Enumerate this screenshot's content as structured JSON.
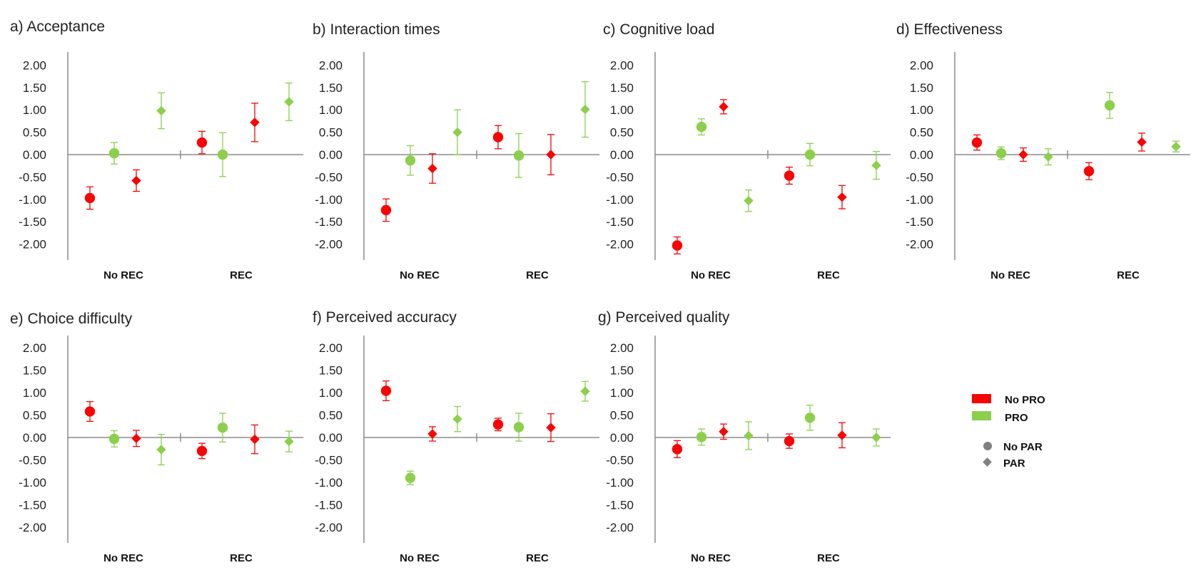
{
  "colors": {
    "no_pro": "#f80404",
    "pro": "#8ccf4c",
    "axis": "#8c8c8c",
    "legend_marker": "#808080"
  },
  "y_ticks": [
    "2.00",
    "1.50",
    "1.00",
    "0.50",
    "0.00",
    "-0.50",
    "-1.00",
    "-1.50",
    "-2.00"
  ],
  "legend": {
    "no_pro": "No PRO",
    "pro": "PRO",
    "no_par": "No PAR",
    "par": "PAR"
  },
  "chart_data": [
    {
      "type": "scatter",
      "title": "a) Acceptance",
      "groups": [
        "No REC",
        "REC"
      ],
      "ylim": [
        -2.3,
        2.3
      ],
      "points": [
        {
          "group": "No REC",
          "pro": false,
          "par": false,
          "value": -0.97,
          "err": 0.25
        },
        {
          "group": "No REC",
          "pro": true,
          "par": false,
          "value": 0.03,
          "err": 0.24
        },
        {
          "group": "No REC",
          "pro": false,
          "par": true,
          "value": -0.58,
          "err": 0.24
        },
        {
          "group": "No REC",
          "pro": true,
          "par": true,
          "value": 0.98,
          "err": 0.4
        },
        {
          "group": "REC",
          "pro": false,
          "par": false,
          "value": 0.27,
          "err": 0.25
        },
        {
          "group": "REC",
          "pro": true,
          "par": false,
          "value": 0.0,
          "err": 0.49
        },
        {
          "group": "REC",
          "pro": false,
          "par": true,
          "value": 0.72,
          "err": 0.43
        },
        {
          "group": "REC",
          "pro": true,
          "par": true,
          "value": 1.18,
          "err": 0.42
        }
      ]
    },
    {
      "type": "scatter",
      "title": "b) Interaction times",
      "groups": [
        "No REC",
        "REC"
      ],
      "ylim": [
        -2.3,
        2.3
      ],
      "points": [
        {
          "group": "No REC",
          "pro": false,
          "par": false,
          "value": -1.24,
          "err": 0.25
        },
        {
          "group": "No REC",
          "pro": true,
          "par": false,
          "value": -0.13,
          "err": 0.33
        },
        {
          "group": "No REC",
          "pro": false,
          "par": true,
          "value": -0.31,
          "err": 0.33
        },
        {
          "group": "No REC",
          "pro": true,
          "par": true,
          "value": 0.5,
          "err": 0.5
        },
        {
          "group": "REC",
          "pro": false,
          "par": false,
          "value": 0.39,
          "err": 0.26
        },
        {
          "group": "REC",
          "pro": true,
          "par": false,
          "value": -0.02,
          "err": 0.49
        },
        {
          "group": "REC",
          "pro": false,
          "par": true,
          "value": 0.0,
          "err": 0.45
        },
        {
          "group": "REC",
          "pro": true,
          "par": true,
          "value": 1.01,
          "err": 0.62
        }
      ]
    },
    {
      "type": "scatter",
      "title": "c) Cognitive load",
      "groups": [
        "No REC",
        "REC"
      ],
      "ylim": [
        -2.3,
        2.3
      ],
      "points": [
        {
          "group": "No REC",
          "pro": false,
          "par": false,
          "value": -2.03,
          "err": 0.19
        },
        {
          "group": "No REC",
          "pro": true,
          "par": false,
          "value": 0.62,
          "err": 0.18
        },
        {
          "group": "No REC",
          "pro": false,
          "par": true,
          "value": 1.07,
          "err": 0.16
        },
        {
          "group": "No REC",
          "pro": true,
          "par": true,
          "value": -1.03,
          "err": 0.24
        },
        {
          "group": "REC",
          "pro": false,
          "par": false,
          "value": -0.47,
          "err": 0.19
        },
        {
          "group": "REC",
          "pro": true,
          "par": false,
          "value": 0.0,
          "err": 0.25
        },
        {
          "group": "REC",
          "pro": false,
          "par": true,
          "value": -0.95,
          "err": 0.26
        },
        {
          "group": "REC",
          "pro": true,
          "par": true,
          "value": -0.24,
          "err": 0.31
        }
      ]
    },
    {
      "type": "scatter",
      "title": "d) Effectiveness",
      "groups": [
        "No REC",
        "REC"
      ],
      "ylim": [
        -2.3,
        2.3
      ],
      "points": [
        {
          "group": "No REC",
          "pro": false,
          "par": false,
          "value": 0.27,
          "err": 0.17
        },
        {
          "group": "No REC",
          "pro": true,
          "par": false,
          "value": 0.03,
          "err": 0.14
        },
        {
          "group": "No REC",
          "pro": false,
          "par": true,
          "value": 0.0,
          "err": 0.15
        },
        {
          "group": "No REC",
          "pro": true,
          "par": true,
          "value": -0.05,
          "err": 0.18
        },
        {
          "group": "REC",
          "pro": false,
          "par": false,
          "value": -0.37,
          "err": 0.19
        },
        {
          "group": "REC",
          "pro": true,
          "par": false,
          "value": 1.1,
          "err": 0.29
        },
        {
          "group": "REC",
          "pro": false,
          "par": true,
          "value": 0.28,
          "err": 0.2
        },
        {
          "group": "REC",
          "pro": true,
          "par": true,
          "value": 0.18,
          "err": 0.12
        }
      ]
    },
    {
      "type": "scatter",
      "title": "e) Choice difficulty",
      "groups": [
        "No REC",
        "REC"
      ],
      "ylim": [
        -2.3,
        2.3
      ],
      "points": [
        {
          "group": "No REC",
          "pro": false,
          "par": false,
          "value": 0.58,
          "err": 0.22
        },
        {
          "group": "No REC",
          "pro": true,
          "par": false,
          "value": -0.03,
          "err": 0.18
        },
        {
          "group": "No REC",
          "pro": false,
          "par": true,
          "value": -0.02,
          "err": 0.18
        },
        {
          "group": "No REC",
          "pro": true,
          "par": true,
          "value": -0.27,
          "err": 0.34
        },
        {
          "group": "REC",
          "pro": false,
          "par": false,
          "value": -0.3,
          "err": 0.17
        },
        {
          "group": "REC",
          "pro": true,
          "par": false,
          "value": 0.22,
          "err": 0.32
        },
        {
          "group": "REC",
          "pro": false,
          "par": true,
          "value": -0.04,
          "err": 0.32
        },
        {
          "group": "REC",
          "pro": true,
          "par": true,
          "value": -0.09,
          "err": 0.23
        }
      ]
    },
    {
      "type": "scatter",
      "title": "f) Perceived accuracy",
      "groups": [
        "No REC",
        "REC"
      ],
      "ylim": [
        -2.3,
        2.3
      ],
      "points": [
        {
          "group": "No REC",
          "pro": false,
          "par": false,
          "value": 1.04,
          "err": 0.22
        },
        {
          "group": "No REC",
          "pro": true,
          "par": false,
          "value": -0.9,
          "err": 0.15
        },
        {
          "group": "No REC",
          "pro": false,
          "par": true,
          "value": 0.08,
          "err": 0.16
        },
        {
          "group": "No REC",
          "pro": true,
          "par": true,
          "value": 0.41,
          "err": 0.28
        },
        {
          "group": "REC",
          "pro": false,
          "par": false,
          "value": 0.29,
          "err": 0.14
        },
        {
          "group": "REC",
          "pro": true,
          "par": false,
          "value": 0.23,
          "err": 0.31
        },
        {
          "group": "REC",
          "pro": false,
          "par": true,
          "value": 0.22,
          "err": 0.31
        },
        {
          "group": "REC",
          "pro": true,
          "par": true,
          "value": 1.03,
          "err": 0.22
        }
      ]
    },
    {
      "type": "scatter",
      "title": "g) Perceived quality",
      "groups": [
        "No REC",
        "REC"
      ],
      "ylim": [
        -2.3,
        2.3
      ],
      "points": [
        {
          "group": "No REC",
          "pro": false,
          "par": false,
          "value": -0.26,
          "err": 0.19
        },
        {
          "group": "No REC",
          "pro": true,
          "par": false,
          "value": 0.01,
          "err": 0.18
        },
        {
          "group": "No REC",
          "pro": false,
          "par": true,
          "value": 0.13,
          "err": 0.17
        },
        {
          "group": "No REC",
          "pro": true,
          "par": true,
          "value": 0.04,
          "err": 0.31
        },
        {
          "group": "REC",
          "pro": false,
          "par": false,
          "value": -0.08,
          "err": 0.16
        },
        {
          "group": "REC",
          "pro": true,
          "par": false,
          "value": 0.44,
          "err": 0.28
        },
        {
          "group": "REC",
          "pro": false,
          "par": true,
          "value": 0.05,
          "err": 0.28
        },
        {
          "group": "REC",
          "pro": true,
          "par": true,
          "value": 0.0,
          "err": 0.19
        }
      ]
    }
  ]
}
